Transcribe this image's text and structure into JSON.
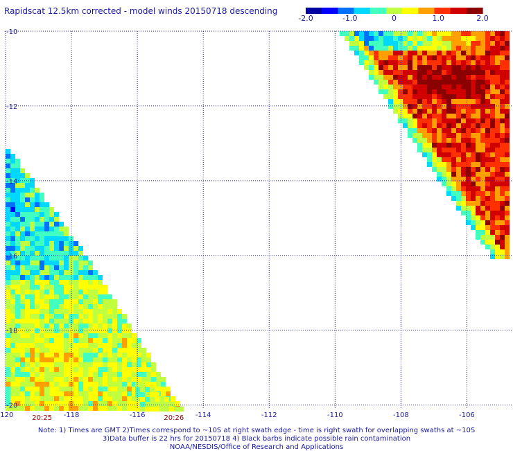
{
  "title": "Rapidscat 12.5km corrected - model winds 20150718 descending",
  "colorbar": {
    "colors": [
      "#0000a0",
      "#0000ff",
      "#0070ff",
      "#00d8ff",
      "#40ffc0",
      "#c0ff40",
      "#ffff00",
      "#ffa000",
      "#ff3000",
      "#d00000",
      "#8b0000"
    ],
    "tick_labels": [
      "-2.0",
      "-1.0",
      "0",
      "1.0",
      "2.0"
    ],
    "min": -2.0,
    "max": 2.0
  },
  "map": {
    "lon_labels": [
      "-120",
      "-118",
      "-116",
      "-114",
      "-112",
      "-110",
      "-108",
      "-106"
    ],
    "lat_labels": [
      "-10",
      "-12",
      "-14",
      "-16",
      "-18",
      "-20"
    ],
    "lon_range": [
      -120,
      -104.6
    ],
    "lat_range": [
      -10,
      -20.1
    ],
    "grid_color": "#2222aa"
  },
  "timestamps": [
    {
      "label": "20:25",
      "lon": -118.9
    },
    {
      "label": "20:26",
      "lon": -114.9
    }
  ],
  "notes": [
    "Note: 1) Times are GMT 2)Times correspond to ~10S at right swath edge - time is right swath for overlapping swaths at ~10S",
    "3)Data buffer is 22 hrs for 20150718 4) Black barbs indicate possible rain contamination",
    "NOAA/NESDIS/Office of Research and Applications"
  ]
}
